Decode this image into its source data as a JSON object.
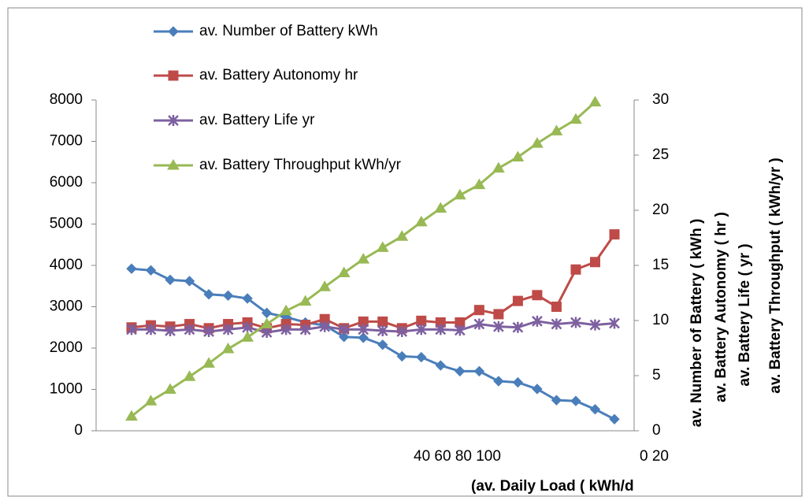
{
  "chart_data": {
    "type": "line",
    "categories": [
      null,
      null,
      null,
      null,
      null,
      null,
      null,
      null,
      null,
      null,
      null,
      null,
      null,
      null,
      null,
      null,
      null,
      null,
      null,
      null,
      null,
      null,
      null,
      null,
      null,
      null
    ],
    "series": [
      {
        "name": "av. Number of Battery kWh",
        "color": "#4a7ebb",
        "marker": "diamond",
        "values": [
          3920,
          3880,
          3650,
          3620,
          3300,
          3270,
          3200,
          2850,
          2750,
          2620,
          2550,
          2270,
          2250,
          2080,
          1800,
          1780,
          1580,
          1440,
          1440,
          1200,
          1170,
          1010,
          740,
          720,
          520,
          280
        ]
      },
      {
        "name": "av. Battery Autonomy hr",
        "color": "#be4b48",
        "marker": "square",
        "values": [
          2500,
          2550,
          2520,
          2580,
          2480,
          2580,
          2620,
          2480,
          2580,
          2560,
          2700,
          2480,
          2640,
          2640,
          2480,
          2660,
          2620,
          2620,
          2920,
          2820,
          3140,
          3280,
          3000,
          3900,
          4080,
          4750
        ]
      },
      {
        "name": "av. Battery Life yr",
        "color": "#7d60a0",
        "marker": "star",
        "values": [
          2450,
          2450,
          2420,
          2450,
          2400,
          2450,
          2500,
          2380,
          2450,
          2450,
          2520,
          2450,
          2450,
          2420,
          2400,
          2450,
          2450,
          2430,
          2580,
          2520,
          2500,
          2650,
          2580,
          2620,
          2560,
          2600
        ]
      },
      {
        "name": "av. Battery Throughput kWh/yr",
        "color": "#98b954",
        "marker": "triangle",
        "values": [
          350,
          720,
          1000,
          1310,
          1630,
          1980,
          2260,
          2580,
          2900,
          3130,
          3480,
          3820,
          4150,
          4430,
          4700,
          5050,
          5380,
          5700,
          5950,
          6350,
          6620,
          6950,
          7250,
          7530,
          7950,
          null
        ]
      }
    ],
    "ylim": [
      0,
      8000
    ],
    "yticks": [
      0,
      1000,
      2000,
      3000,
      4000,
      5000,
      6000,
      7000,
      8000
    ],
    "y2lim": [
      0,
      30
    ],
    "y2ticks": [
      0,
      5,
      10,
      15,
      20,
      25,
      30
    ],
    "y2labels": [
      "av. Number of Battery ( kWh )",
      "av. Battery Autonomy ( hr )",
      "av. Battery Life ( yr )",
      "av. Battery Throughput ( kWh/yr )"
    ],
    "xlabel": "(av. Daily Load ( kWh/d",
    "x_annotations": [
      "40 60 80 100",
      "0 20"
    ],
    "legend": "upper left"
  }
}
